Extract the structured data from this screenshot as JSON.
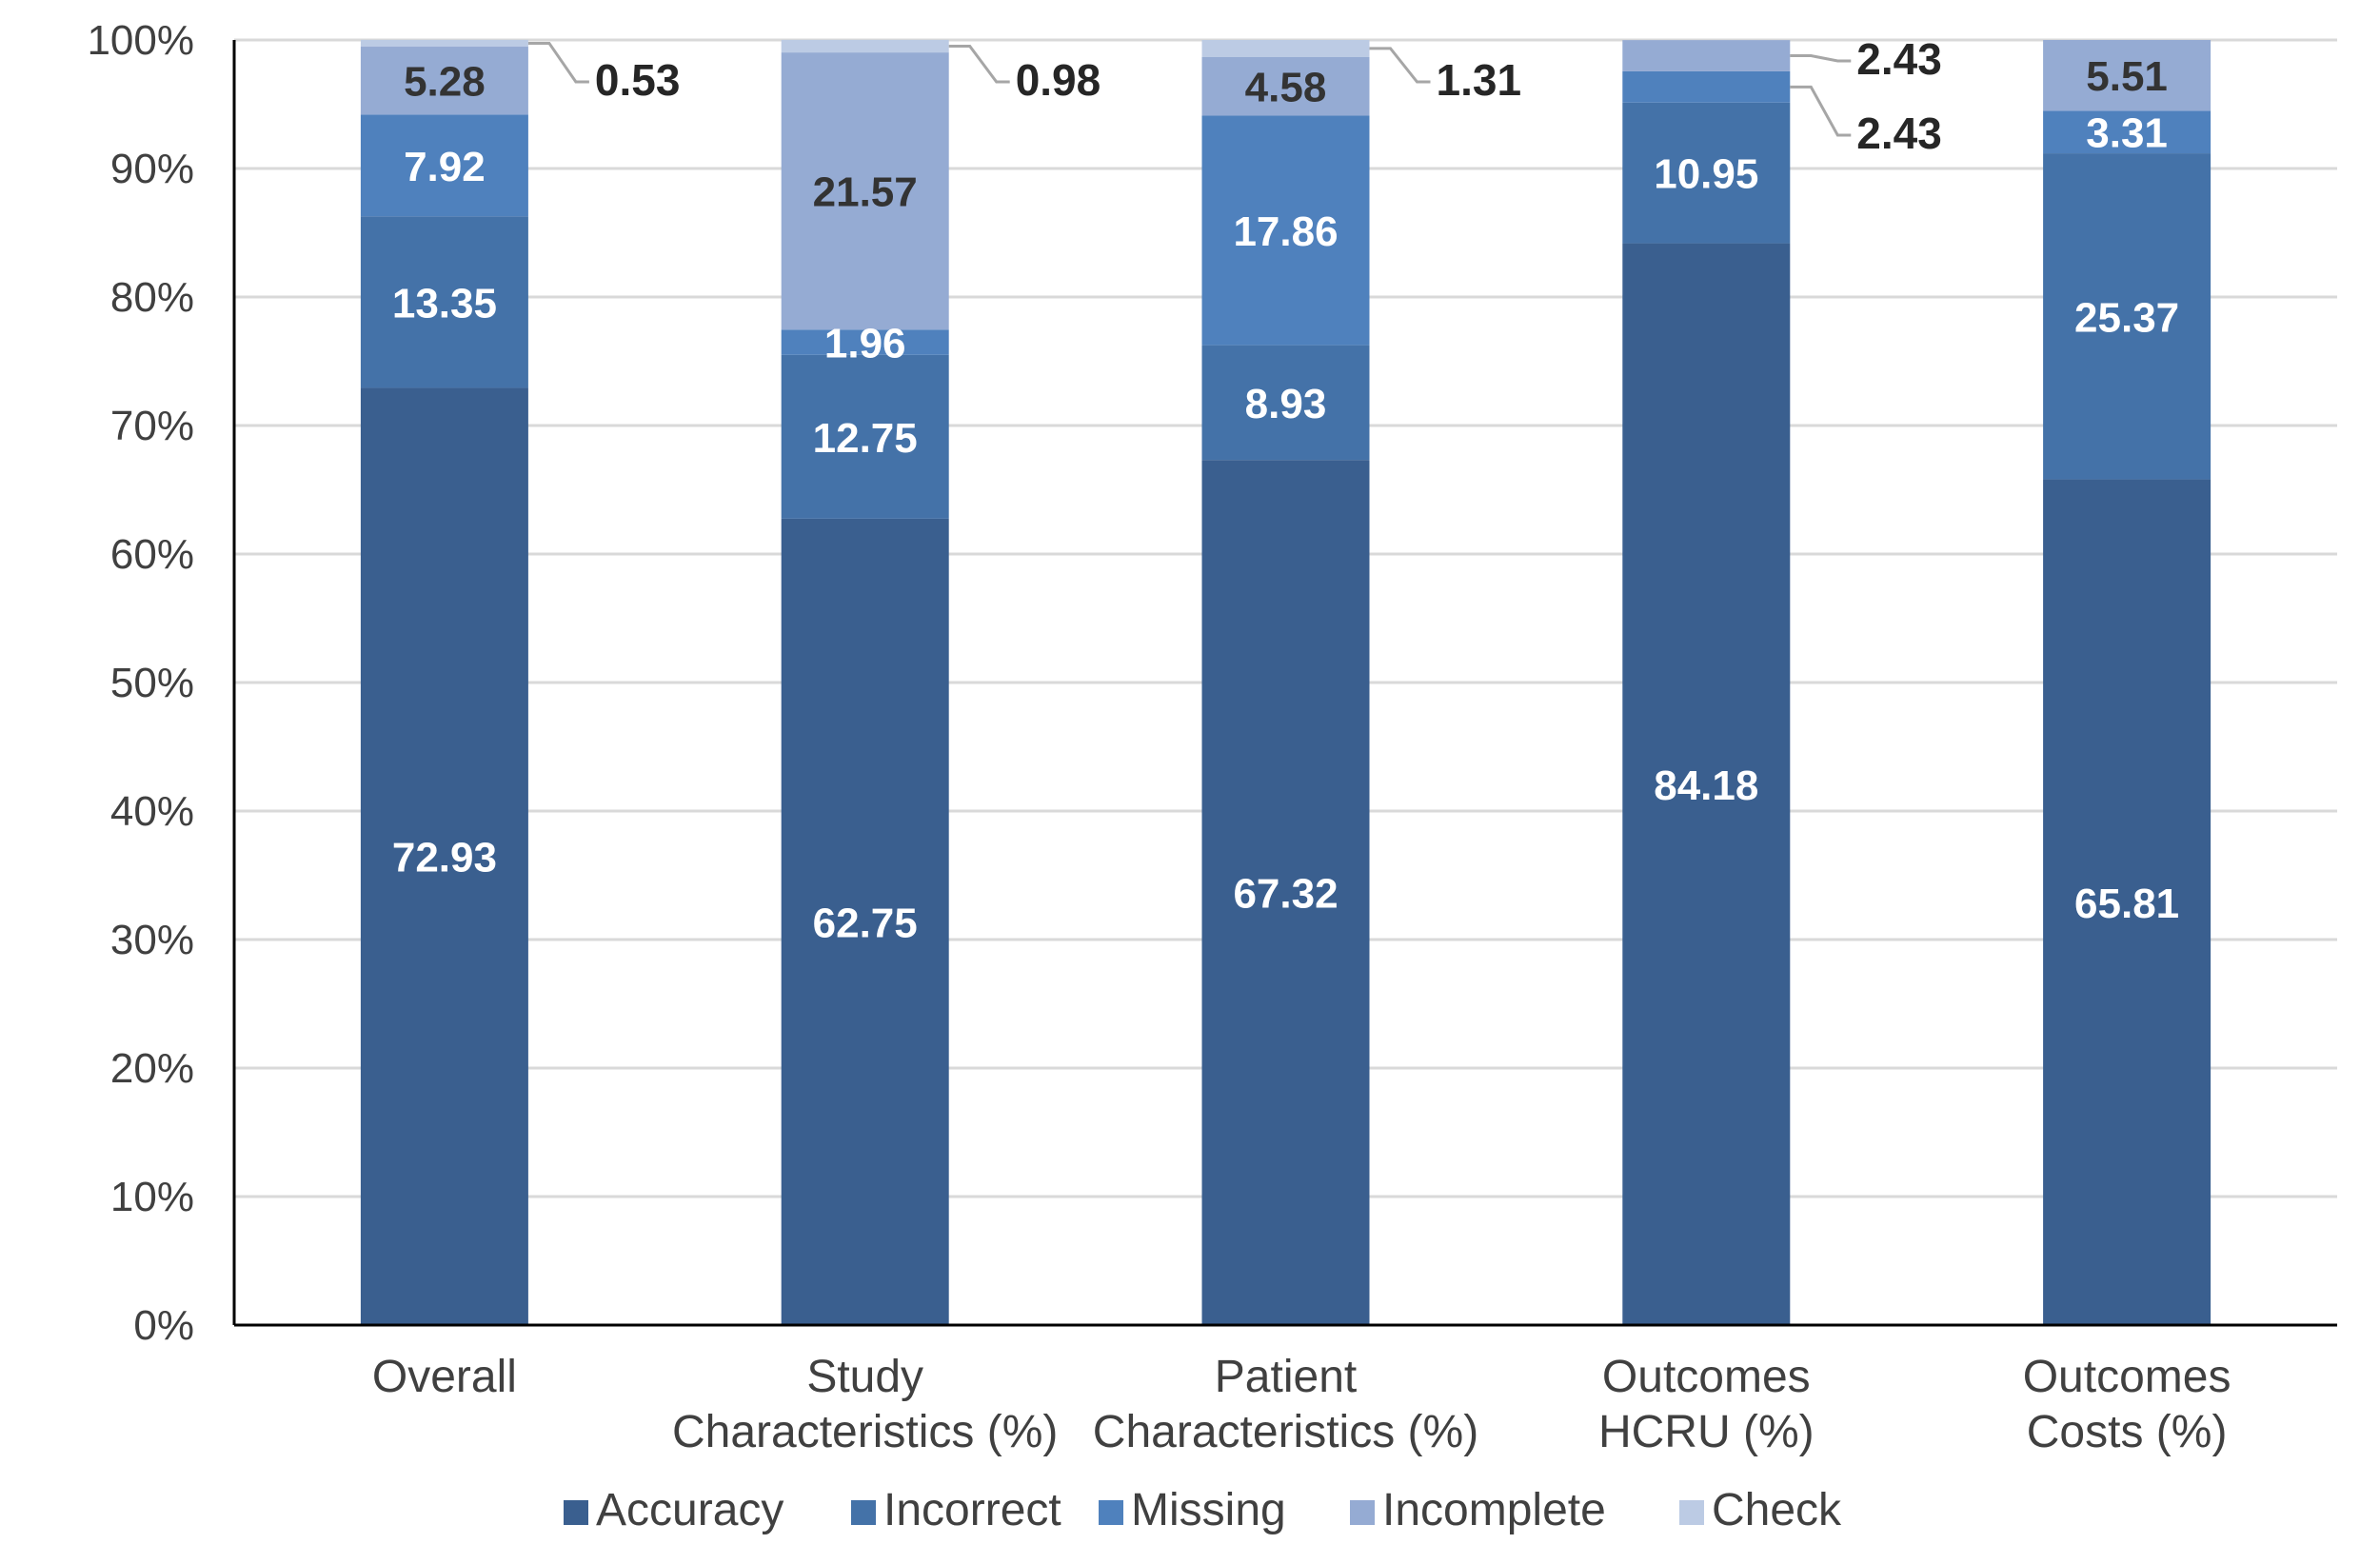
{
  "chart_data": {
    "type": "bar",
    "stacked": true,
    "categories": [
      [
        "Overall"
      ],
      [
        "Study",
        "Characteristics (%)"
      ],
      [
        "Patient",
        "Characteristics (%)"
      ],
      [
        "Outcomes",
        "HCRU (%)"
      ],
      [
        "Outcomes",
        "Costs (%)"
      ]
    ],
    "series": [
      {
        "name": "Accuracy",
        "color": "#3a5f8f",
        "values": [
          72.93,
          62.75,
          67.32,
          84.18,
          65.81
        ]
      },
      {
        "name": "Incorrect",
        "color": "#4472a8",
        "values": [
          13.35,
          12.75,
          8.93,
          10.95,
          25.37
        ]
      },
      {
        "name": "Missing",
        "color": "#4f81bd",
        "values": [
          7.92,
          1.96,
          17.86,
          2.43,
          3.31
        ]
      },
      {
        "name": "Incomplete",
        "color": "#95abd3",
        "values": [
          5.28,
          21.57,
          4.58,
          2.43,
          5.51
        ]
      },
      {
        "name": "Check",
        "color": "#bccbe4",
        "values": [
          0.53,
          0.98,
          1.31,
          0,
          0
        ]
      }
    ],
    "data_labels": [
      [
        "72.93",
        "13.35",
        "7.92",
        "5.28",
        "0.53"
      ],
      [
        "62.75",
        "12.75",
        "1.96",
        "21.57",
        "0.98"
      ],
      [
        "67.32",
        "8.93",
        "17.86",
        "4.58",
        "1.31"
      ],
      [
        "84.18",
        "10.95",
        "2.43",
        "2.43",
        ""
      ],
      [
        "65.81",
        "25.37",
        "3.31",
        "5.51",
        ""
      ]
    ],
    "y_tick_labels": [
      "0%",
      "10%",
      "20%",
      "30%",
      "40%",
      "50%",
      "60%",
      "70%",
      "80%",
      "90%",
      "100%"
    ],
    "ylim": [
      0,
      100
    ],
    "y_tick_step": 10,
    "grid": true,
    "legend_position": "bottom",
    "title": "",
    "xlabel": "",
    "ylabel": ""
  }
}
